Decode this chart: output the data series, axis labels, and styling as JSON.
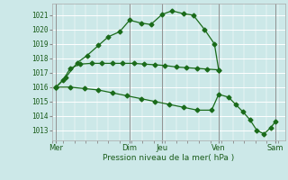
{
  "xlabel": "Pression niveau de la mer( hPa )",
  "bg_color": "#cce8e8",
  "line_color": "#1a6b1a",
  "marker_color": "#1a6b1a",
  "yticks": [
    1013,
    1014,
    1015,
    1016,
    1017,
    1018,
    1019,
    1020,
    1021
  ],
  "ylim": [
    1012.3,
    1021.8
  ],
  "xlim": [
    0,
    16.5
  ],
  "x_day_labels": [
    "Mer",
    "Dim",
    "Jeu",
    "Ven",
    "Sam"
  ],
  "x_day_positions": [
    0.3,
    5.5,
    7.8,
    11.8,
    15.8
  ],
  "s1_x": [
    0.3,
    1.0,
    1.8,
    2.5,
    3.3,
    4.0,
    4.8,
    5.5,
    6.3,
    7.0,
    7.8,
    8.5,
    9.3,
    10.0,
    10.8,
    11.5,
    11.8
  ],
  "s1_y": [
    1016.0,
    1016.7,
    1017.7,
    1018.2,
    1018.9,
    1019.5,
    1019.85,
    1020.65,
    1020.45,
    1020.35,
    1021.05,
    1021.3,
    1021.1,
    1021.0,
    1020.0,
    1019.0,
    1017.2
  ],
  "s2_x": [
    0.3,
    0.8,
    1.3,
    2.0,
    2.8,
    3.5,
    4.3,
    5.0,
    5.8,
    6.5,
    7.3,
    8.0,
    8.8,
    9.5,
    10.3,
    11.0,
    11.8
  ],
  "s2_y": [
    1016.0,
    1016.5,
    1017.3,
    1017.6,
    1017.65,
    1017.65,
    1017.65,
    1017.65,
    1017.65,
    1017.6,
    1017.55,
    1017.5,
    1017.4,
    1017.35,
    1017.3,
    1017.25,
    1017.2
  ],
  "s3_x": [
    0.3,
    1.3,
    2.3,
    3.3,
    4.3,
    5.3,
    6.3,
    7.3,
    8.3,
    9.3,
    10.3,
    11.3,
    11.8,
    12.5,
    13.0,
    13.5,
    14.0,
    14.5,
    15.0,
    15.5,
    15.8
  ],
  "s3_y": [
    1016.0,
    1016.0,
    1015.9,
    1015.8,
    1015.6,
    1015.4,
    1015.2,
    1015.0,
    1014.8,
    1014.6,
    1014.4,
    1014.4,
    1015.5,
    1015.3,
    1014.8,
    1014.3,
    1013.75,
    1013.0,
    1012.75,
    1013.2,
    1013.6
  ]
}
